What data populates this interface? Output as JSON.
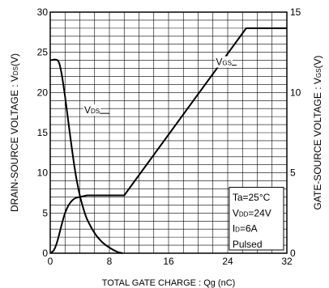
{
  "chart_data": {
    "type": "line",
    "title": "",
    "xlabel": "TOTAL GATE CHARGE : Qg (nC)",
    "ylabel_left": "DRAIN-SOURCE VOLTAGE : V",
    "ylabel_left_sub": "DS",
    "ylabel_left_unit": "(V)",
    "ylabel_right": "GATE-SOURCE VOLTAGE : V",
    "ylabel_right_sub": "GS",
    "ylabel_right_unit": "(V)",
    "xlim": [
      0,
      32
    ],
    "ylim_left": [
      0,
      30
    ],
    "ylim_right": [
      0,
      15
    ],
    "x_ticks": [
      0,
      8,
      16,
      24,
      32
    ],
    "y_left_ticks": [
      0,
      5,
      10,
      15,
      20,
      25,
      30
    ],
    "y_right_ticks": [
      0,
      5,
      10,
      15
    ],
    "grid": true,
    "series": [
      {
        "name": "V",
        "name_sub": "DS",
        "axis": "left",
        "x": [
          0,
          1.0,
          1.5,
          2.0,
          2.5,
          3.0,
          3.5,
          4.0,
          4.5,
          5.0,
          6.0,
          7.0,
          8.0,
          9.0,
          9.8
        ],
        "y": [
          24,
          24,
          22.5,
          19.5,
          16,
          12.5,
          9.5,
          7.2,
          5.5,
          4.2,
          2.5,
          1.4,
          0.7,
          0.2,
          0
        ]
      },
      {
        "name": "V",
        "name_sub": "GS",
        "axis": "right",
        "x": [
          0,
          0.5,
          1.0,
          1.5,
          2.0,
          2.5,
          3.0,
          3.5,
          4.0,
          4.5,
          5.0,
          10.0,
          26.5,
          32
        ],
        "y": [
          0,
          0.2,
          0.8,
          1.7,
          2.5,
          3.0,
          3.3,
          3.45,
          3.5,
          3.55,
          3.6,
          3.6,
          14,
          14
        ]
      }
    ],
    "annotation": {
      "lines": [
        {
          "main": "Ta=25°C",
          "sub": "",
          "rest": ""
        },
        {
          "main": "V",
          "sub": "DD",
          "rest": "=24V"
        },
        {
          "main": "I",
          "sub": "D",
          "rest": "=6A"
        },
        {
          "main": "Pulsed",
          "sub": "",
          "rest": ""
        }
      ]
    }
  }
}
